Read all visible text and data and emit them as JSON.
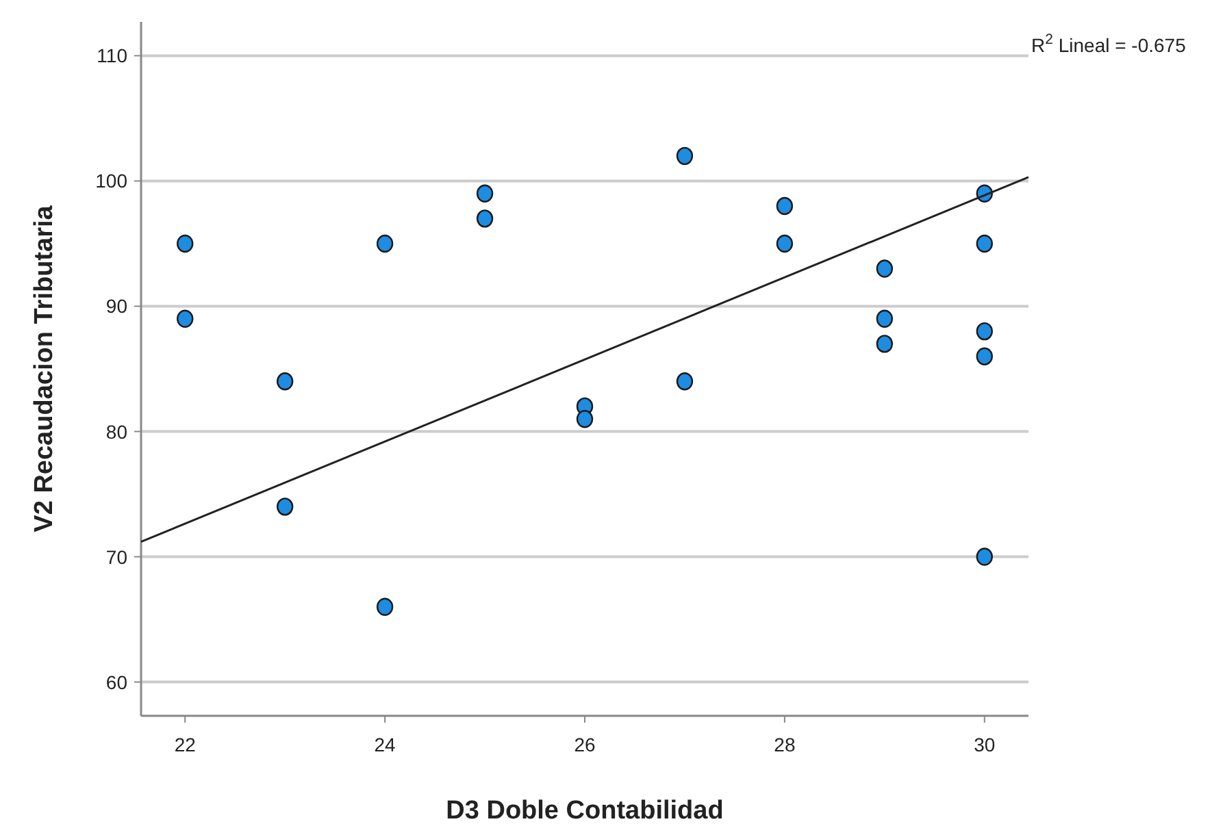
{
  "chart_data": {
    "type": "scatter",
    "xlabel": "D3 Doble Contabilidad",
    "ylabel": "V2 Recaudacion Tributaria",
    "xlim": [
      21.56,
      30.44
    ],
    "ylim": [
      57.3,
      112.7
    ],
    "xticks": [
      22,
      24,
      26,
      28,
      30
    ],
    "yticks": [
      60,
      70,
      80,
      90,
      100,
      110
    ],
    "grid": "y",
    "marker": "circle",
    "annotations": [
      "R$^{2}$ Lineal = -0.675"
    ],
    "series": [
      {
        "color": "#1e8ce0",
        "x": [
          22,
          22,
          23,
          23,
          24,
          24,
          25,
          25,
          26,
          26,
          27,
          27,
          28,
          28,
          29,
          29,
          29,
          30,
          30,
          30,
          30,
          30
        ],
        "values": [
          95,
          89,
          84,
          74,
          95,
          66,
          99,
          97,
          82,
          81,
          102,
          84,
          98,
          95,
          93,
          89,
          87,
          99,
          95,
          88,
          86,
          70
        ]
      },
      {
        "type": "line",
        "color": "#222222",
        "marker": "none",
        "line_style": "solid",
        "x": [
          21.56,
          30.44
        ],
        "values": [
          71.2,
          100.3
        ]
      }
    ]
  }
}
